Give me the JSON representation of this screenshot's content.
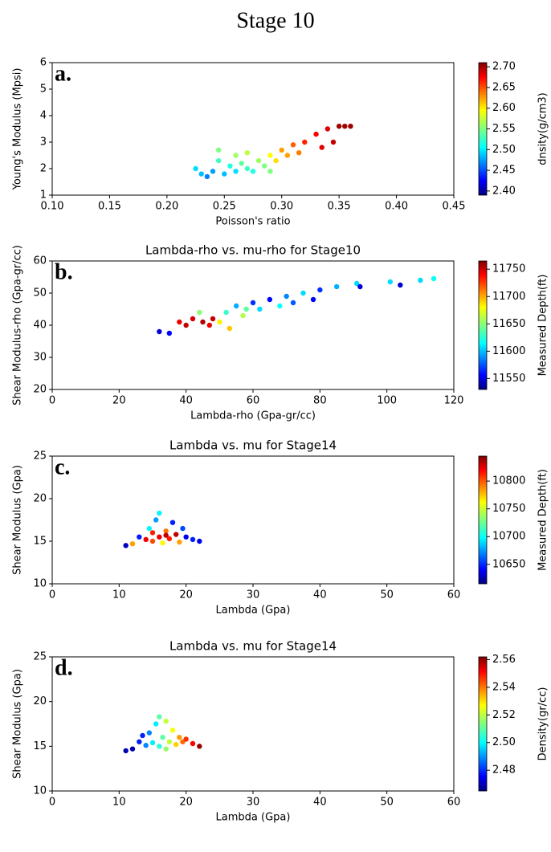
{
  "title": "Stage 10",
  "chart_data": [
    {
      "type": "scatter",
      "panel_label": "a.",
      "xlabel": "Poisson's ratio",
      "ylabel": "Young's Modulus (Mpsi)",
      "colorbar_label": "dnsity(g/cm3)",
      "colormap": "jet",
      "x": [
        0.225,
        0.23,
        0.235,
        0.24,
        0.245,
        0.245,
        0.25,
        0.255,
        0.26,
        0.26,
        0.265,
        0.27,
        0.27,
        0.275,
        0.28,
        0.285,
        0.29,
        0.29,
        0.295,
        0.3,
        0.305,
        0.31,
        0.315,
        0.32,
        0.33,
        0.335,
        0.34,
        0.345,
        0.35,
        0.355,
        0.36
      ],
      "values": [
        2.0,
        1.8,
        1.7,
        1.9,
        2.3,
        2.7,
        1.8,
        2.1,
        2.5,
        1.9,
        2.2,
        2.0,
        2.6,
        1.9,
        2.3,
        2.1,
        2.5,
        1.9,
        2.3,
        2.7,
        2.5,
        2.9,
        2.6,
        3.0,
        3.3,
        2.8,
        3.5,
        3.0,
        3.6,
        3.6,
        3.6
      ],
      "c": [
        2.5,
        2.49,
        2.47,
        2.48,
        2.53,
        2.55,
        2.49,
        2.52,
        2.56,
        2.5,
        2.54,
        2.53,
        2.57,
        2.52,
        2.56,
        2.55,
        2.59,
        2.55,
        2.6,
        2.62,
        2.62,
        2.64,
        2.63,
        2.66,
        2.67,
        2.68,
        2.68,
        2.69,
        2.7,
        2.7,
        2.7
      ],
      "xlim": [
        0.1,
        0.45
      ],
      "ylim": [
        1,
        6
      ],
      "clim": [
        2.39,
        2.71
      ],
      "xticks": [
        {
          "value": 0.1,
          "label": "0.10"
        },
        {
          "value": 0.15,
          "label": "0.15"
        },
        {
          "value": 0.2,
          "label": "0.20"
        },
        {
          "value": 0.25,
          "label": "0.25"
        },
        {
          "value": 0.3,
          "label": "0.30"
        },
        {
          "value": 0.35,
          "label": "0.35"
        },
        {
          "value": 0.4,
          "label": "0.40"
        },
        {
          "value": 0.45,
          "label": "0.45"
        }
      ],
      "yticks": [
        1,
        2,
        3,
        4,
        5,
        6
      ],
      "cticks": [
        {
          "value": 2.4,
          "label": "2.40"
        },
        {
          "value": 2.45,
          "label": "2.45"
        },
        {
          "value": 2.5,
          "label": "2.50"
        },
        {
          "value": 2.55,
          "label": "2.55"
        },
        {
          "value": 2.6,
          "label": "2.60"
        },
        {
          "value": 2.65,
          "label": "2.65"
        },
        {
          "value": 2.7,
          "label": "2.70"
        }
      ]
    },
    {
      "type": "scatter",
      "panel_label": "b.",
      "title": "Lambda-rho vs. mu-rho for Stage10",
      "xlabel": "Lambda-rho (Gpa-gr/cc)",
      "ylabel": "Shear Modulus-rho (Gpa-gr/cc)",
      "colorbar_label": "Measured Depth(ft)",
      "colormap": "jet",
      "x": [
        32,
        35,
        38,
        40,
        42,
        44,
        45,
        47,
        48,
        50,
        52,
        55,
        57,
        60,
        62,
        65,
        68,
        70,
        72,
        75,
        78,
        80,
        85,
        91,
        92,
        101,
        104,
        110,
        114,
        53,
        58
      ],
      "values": [
        38,
        37.5,
        41,
        40,
        42,
        44,
        41,
        40,
        42,
        41,
        44,
        46,
        43,
        47,
        45,
        48,
        46,
        49,
        47,
        50,
        48,
        51,
        52,
        53,
        52,
        53.5,
        52.5,
        54,
        54.5,
        39,
        45
      ],
      "c": [
        11550,
        11560,
        11740,
        11750,
        11745,
        11650,
        11755,
        11740,
        11750,
        11680,
        11630,
        11600,
        11660,
        11570,
        11610,
        11560,
        11620,
        11590,
        11580,
        11610,
        11560,
        11570,
        11600,
        11610,
        11550,
        11610,
        11550,
        11610,
        11620,
        11690,
        11640
      ],
      "xlim": [
        0,
        120
      ],
      "ylim": [
        20,
        60
      ],
      "clim": [
        11530,
        11765
      ],
      "xticks": [
        0,
        20,
        40,
        60,
        80,
        100,
        120
      ],
      "yticks": [
        20,
        30,
        40,
        50,
        60
      ],
      "cticks": [
        11550,
        11600,
        11650,
        11700,
        11750
      ]
    },
    {
      "type": "scatter",
      "panel_label": "c.",
      "title": "Lambda vs. mu for Stage14",
      "xlabel": "Lambda (Gpa)",
      "ylabel": "Shear Modulus (Gpa)",
      "colorbar_label": "Measured Depth(ft)",
      "colormap": "jet",
      "x": [
        11,
        12,
        13,
        14,
        14.5,
        15,
        15.5,
        16,
        16,
        16.5,
        17,
        17.5,
        18,
        18.5,
        19,
        19.5,
        20,
        21,
        22,
        17,
        15
      ],
      "values": [
        14.5,
        14.7,
        15.5,
        15.2,
        16.5,
        15,
        17.5,
        18.3,
        15.5,
        14.8,
        16.2,
        15.3,
        17.2,
        15.8,
        14.9,
        16.5,
        15.5,
        15.2,
        15.0,
        15.7,
        16
      ],
      "c": [
        10630,
        10780,
        10650,
        10820,
        10700,
        10800,
        10680,
        10700,
        10820,
        10760,
        10790,
        10810,
        10650,
        10830,
        10780,
        10660,
        10640,
        10650,
        10640,
        10830,
        10810
      ],
      "xlim": [
        0,
        60
      ],
      "ylim": [
        10,
        25
      ],
      "clim": [
        10615,
        10845
      ],
      "xticks": [
        0,
        10,
        20,
        30,
        40,
        50,
        60
      ],
      "yticks": [
        10,
        15,
        20,
        25
      ],
      "cticks": [
        10650,
        10700,
        10750,
        10800
      ]
    },
    {
      "type": "scatter",
      "panel_label": "d.",
      "title": "Lambda vs. mu for Stage14",
      "xlabel": "Lambda (Gpa)",
      "ylabel": "Shear Modulus (Gpa)",
      "colorbar_label": "Density(gr/cc)",
      "colormap": "jet",
      "x": [
        11,
        12,
        13,
        13.5,
        14,
        14.5,
        15,
        15.5,
        16,
        16,
        16.5,
        17,
        17,
        17.5,
        18,
        18.5,
        19,
        19.5,
        20,
        21,
        22
      ],
      "values": [
        14.5,
        14.7,
        15.5,
        16.2,
        15.1,
        16.5,
        15.4,
        17.5,
        18.3,
        15,
        16,
        17.8,
        14.7,
        15.5,
        16.8,
        15.2,
        16,
        15.5,
        15.8,
        15.3,
        15
      ],
      "c": [
        2.47,
        2.47,
        2.48,
        2.48,
        2.49,
        2.49,
        2.5,
        2.5,
        2.51,
        2.505,
        2.51,
        2.52,
        2.515,
        2.52,
        2.525,
        2.53,
        2.535,
        2.54,
        2.545,
        2.55,
        2.56
      ],
      "xlim": [
        0,
        60
      ],
      "ylim": [
        10,
        25
      ],
      "clim": [
        2.465,
        2.562
      ],
      "xticks": [
        0,
        10,
        20,
        30,
        40,
        50,
        60
      ],
      "yticks": [
        10,
        15,
        20,
        25
      ],
      "cticks": [
        {
          "value": 2.48,
          "label": "2.48"
        },
        {
          "value": 2.5,
          "label": "2.50"
        },
        {
          "value": 2.52,
          "label": "2.52"
        },
        {
          "value": 2.54,
          "label": "2.54"
        },
        {
          "value": 2.56,
          "label": "2.56"
        }
      ]
    }
  ]
}
